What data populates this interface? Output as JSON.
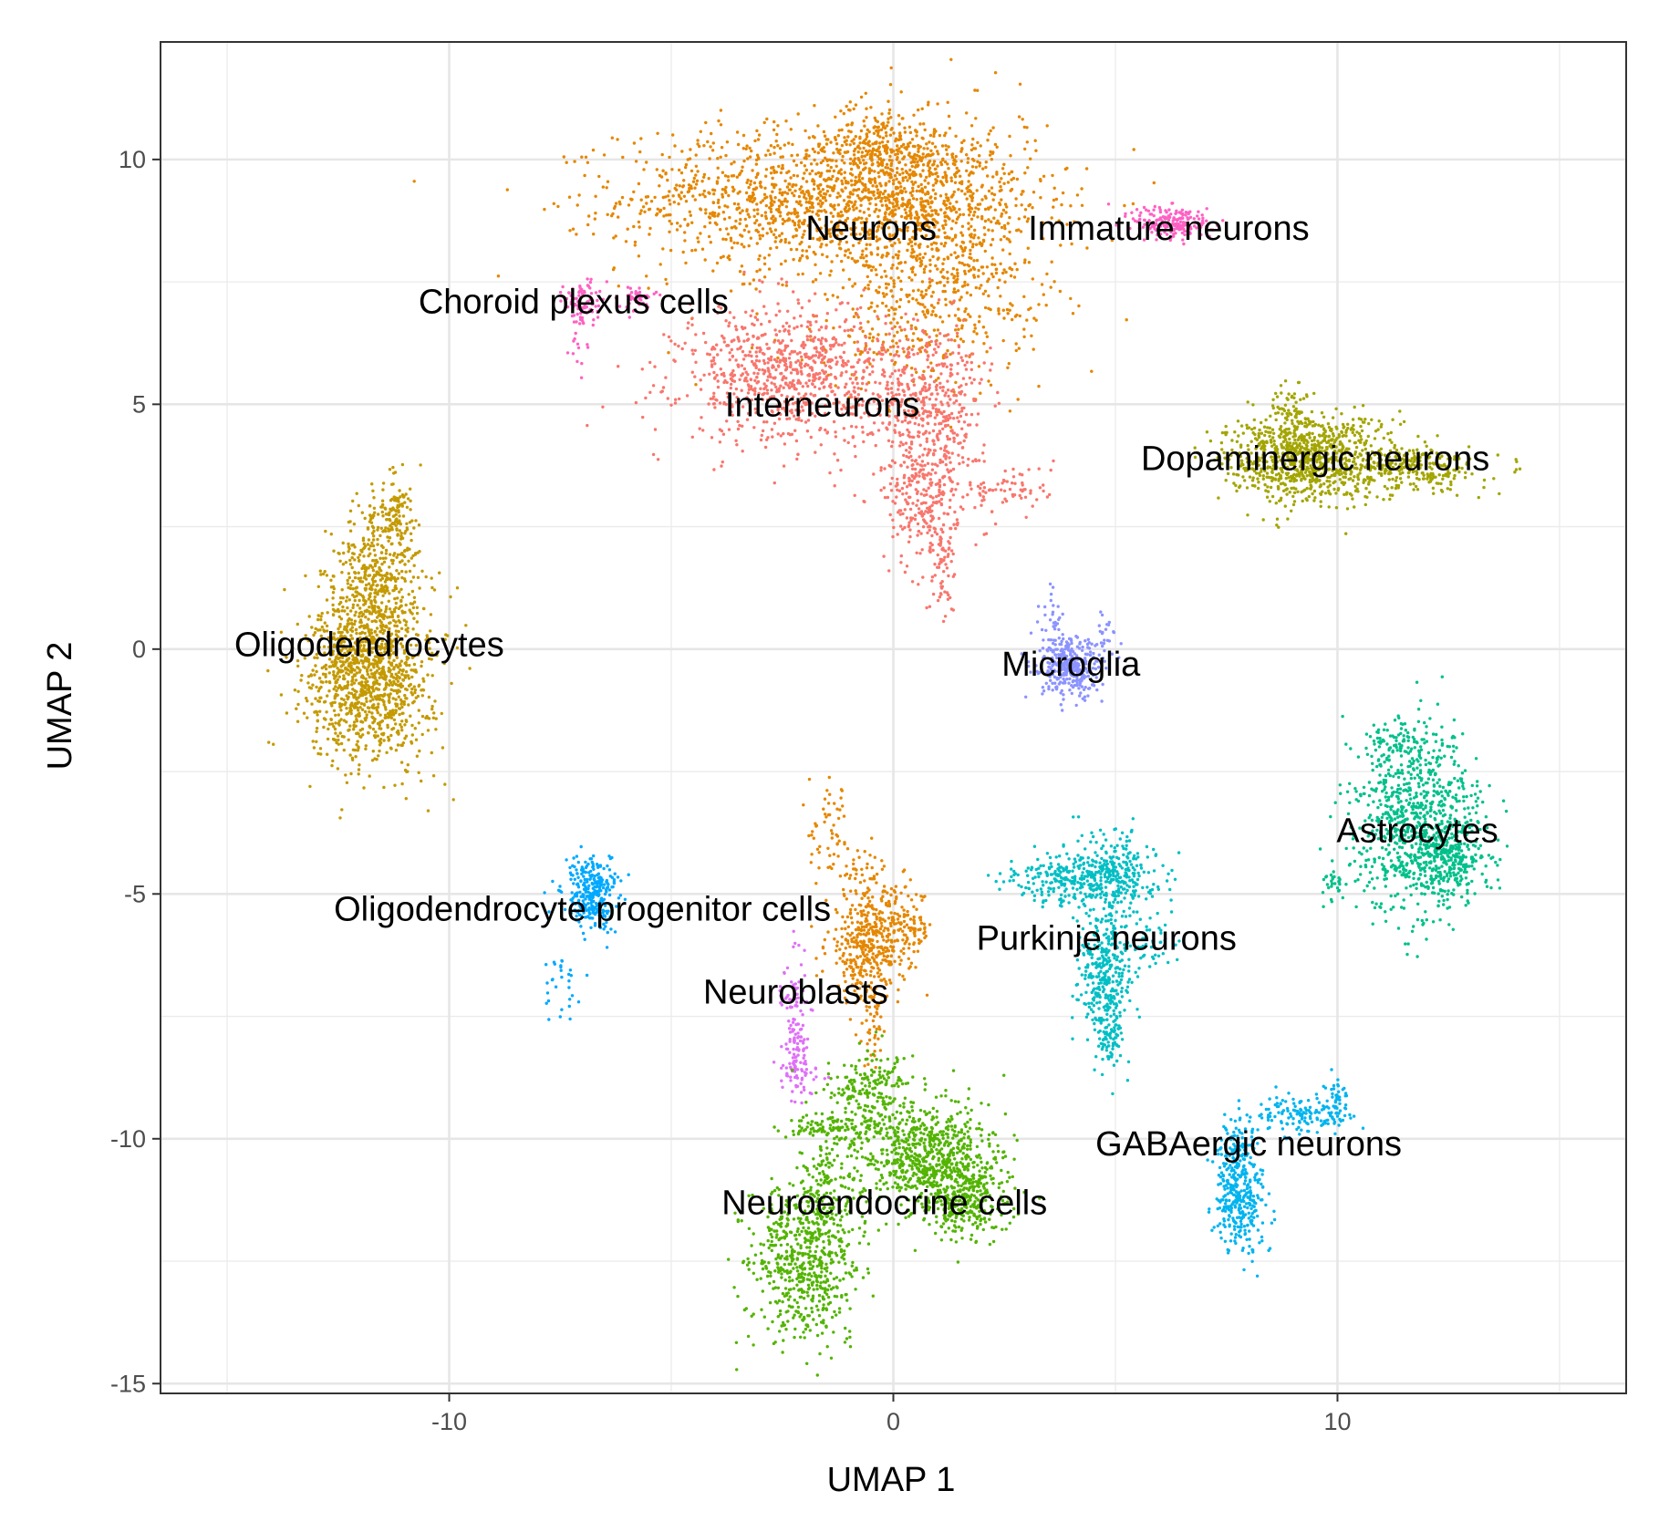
{
  "chart_data": {
    "type": "scatter",
    "title": "",
    "xlabel": "UMAP 1",
    "ylabel": "UMAP 2",
    "xlim": [
      -16.5,
      16.5
    ],
    "ylim": [
      -15.2,
      12.4
    ],
    "x_ticks": [
      -10,
      0,
      10
    ],
    "x_tick_labels": [
      "-10",
      "0",
      "10"
    ],
    "y_ticks": [
      -15,
      -10,
      -5,
      0,
      5,
      10
    ],
    "y_tick_labels": [
      "-15",
      "-10",
      "-5",
      "0",
      "5",
      "10"
    ],
    "x_minor_ticks": [
      -15,
      -5,
      5,
      15
    ],
    "y_minor_ticks": [
      -12.5,
      -7.5,
      -2.5,
      2.5,
      7.5
    ],
    "grid": true,
    "legend": "none",
    "clusters": [
      {
        "name": "Neurons",
        "color": "#E58700",
        "label_x": -0.5,
        "label_y": 8.6,
        "blobs": [
          {
            "cx": -1.5,
            "cy": 9.2,
            "sx": 2.3,
            "sy": 0.75,
            "n": 1500
          },
          {
            "cx": 1.2,
            "cy": 8.3,
            "sx": 1.1,
            "sy": 1.3,
            "n": 600
          },
          {
            "cx": -0.4,
            "cy": 10.4,
            "sx": 0.5,
            "sy": 0.4,
            "n": 120
          },
          {
            "cx": 0.3,
            "cy": 10.0,
            "sx": 0.7,
            "sy": 0.4,
            "n": 140
          },
          {
            "cx": 0.4,
            "cy": 6.6,
            "sx": 1.6,
            "sy": 0.7,
            "n": 180
          },
          {
            "cx": -0.6,
            "cy": -6.1,
            "sx": 0.45,
            "sy": 0.55,
            "n": 350
          },
          {
            "cx": 0.1,
            "cy": -5.7,
            "sx": 0.4,
            "sy": 0.4,
            "n": 160
          },
          {
            "cx": -1.4,
            "cy": -3.7,
            "sx": 0.25,
            "sy": 0.45,
            "n": 50
          },
          {
            "cx": -0.8,
            "cy": -4.5,
            "sx": 0.35,
            "sy": 0.25,
            "n": 45
          },
          {
            "cx": -0.5,
            "cy": -7.8,
            "sx": 0.15,
            "sy": 0.5,
            "n": 40
          }
        ]
      },
      {
        "name": "Interneurons",
        "color": "#F8766D",
        "label_x": -1.6,
        "label_y": 5.0,
        "blobs": [
          {
            "cx": -2.2,
            "cy": 5.6,
            "sx": 1.3,
            "sy": 0.7,
            "n": 900
          },
          {
            "cx": 0.9,
            "cy": 4.8,
            "sx": 0.6,
            "sy": 0.9,
            "n": 450
          },
          {
            "cx": 0.6,
            "cy": 3.0,
            "sx": 0.4,
            "sy": 0.6,
            "n": 200
          },
          {
            "cx": 1.1,
            "cy": 1.6,
            "sx": 0.15,
            "sy": 0.6,
            "n": 70
          },
          {
            "cx": 2.6,
            "cy": 3.3,
            "sx": 0.5,
            "sy": 0.25,
            "n": 70
          }
        ]
      },
      {
        "name": "Immature neurons",
        "color": "#FF61C3",
        "label_x": 6.2,
        "label_y": 8.6,
        "blobs": [
          {
            "cx": 6.3,
            "cy": 8.7,
            "sx": 0.45,
            "sy": 0.18,
            "n": 200
          }
        ]
      },
      {
        "name": "Choroid plexus cells",
        "color": "#FF61C3",
        "label_x": -7.2,
        "label_y": 7.1,
        "blobs": [
          {
            "cx": -7.0,
            "cy": 7.1,
            "sx": 0.2,
            "sy": 0.22,
            "n": 80
          },
          {
            "cx": -5.8,
            "cy": 7.2,
            "sx": 0.2,
            "sy": 0.12,
            "n": 40
          },
          {
            "cx": -7.1,
            "cy": 6.4,
            "sx": 0.12,
            "sy": 0.3,
            "n": 20
          }
        ]
      },
      {
        "name": "Dopaminergic neurons",
        "color": "#A3A500",
        "label_x": 9.5,
        "label_y": 3.9,
        "blobs": [
          {
            "cx": 9.3,
            "cy": 3.9,
            "sx": 0.9,
            "sy": 0.45,
            "n": 900
          },
          {
            "cx": 11.8,
            "cy": 3.7,
            "sx": 0.7,
            "sy": 0.25,
            "n": 250
          },
          {
            "cx": 8.9,
            "cy": 4.9,
            "sx": 0.2,
            "sy": 0.3,
            "n": 60
          }
        ]
      },
      {
        "name": "Oligodendrocytes",
        "color": "#C49A00",
        "label_x": -11.8,
        "label_y": 0.1,
        "blobs": [
          {
            "cx": -11.8,
            "cy": -0.5,
            "sx": 0.7,
            "sy": 0.9,
            "n": 1200
          },
          {
            "cx": -11.6,
            "cy": 1.5,
            "sx": 0.45,
            "sy": 0.8,
            "n": 400
          },
          {
            "cx": -11.2,
            "cy": 2.9,
            "sx": 0.2,
            "sy": 0.35,
            "n": 80
          }
        ]
      },
      {
        "name": "Microglia",
        "color": "#8B93FF",
        "label_x": 4.0,
        "label_y": -0.3,
        "blobs": [
          {
            "cx": 4.0,
            "cy": -0.4,
            "sx": 0.35,
            "sy": 0.3,
            "n": 350
          },
          {
            "cx": 3.6,
            "cy": 0.5,
            "sx": 0.15,
            "sy": 0.3,
            "n": 30
          },
          {
            "cx": 4.8,
            "cy": 0.3,
            "sx": 0.12,
            "sy": 0.25,
            "n": 20
          }
        ]
      },
      {
        "name": "Astrocytes",
        "color": "#00C08B",
        "label_x": 11.8,
        "label_y": -3.7,
        "blobs": [
          {
            "cx": 11.8,
            "cy": -3.5,
            "sx": 0.7,
            "sy": 0.9,
            "n": 800
          },
          {
            "cx": 12.5,
            "cy": -4.3,
            "sx": 0.45,
            "sy": 0.4,
            "n": 250
          },
          {
            "cx": 11.4,
            "cy": -2.0,
            "sx": 0.3,
            "sy": 0.3,
            "n": 80
          },
          {
            "cx": 10.0,
            "cy": -4.8,
            "sx": 0.2,
            "sy": 0.2,
            "n": 30
          }
        ]
      },
      {
        "name": "Purkinje neurons",
        "color": "#00BFC4",
        "label_x": 4.8,
        "label_y": -5.9,
        "blobs": [
          {
            "cx": 4.9,
            "cy": -4.6,
            "sx": 0.55,
            "sy": 0.4,
            "n": 350
          },
          {
            "cx": 3.6,
            "cy": -4.7,
            "sx": 0.55,
            "sy": 0.25,
            "n": 150
          },
          {
            "cx": 4.8,
            "cy": -6.7,
            "sx": 0.3,
            "sy": 0.7,
            "n": 350
          },
          {
            "cx": 4.9,
            "cy": -7.9,
            "sx": 0.15,
            "sy": 0.3,
            "n": 60
          },
          {
            "cx": 5.8,
            "cy": -6.0,
            "sx": 0.25,
            "sy": 0.25,
            "n": 40
          }
        ]
      },
      {
        "name": "Oligodendrocyte progenitor cells",
        "color": "#00A9FF",
        "label_x": -7.0,
        "label_y": -5.3,
        "blobs": [
          {
            "cx": -6.8,
            "cy": -5.0,
            "sx": 0.3,
            "sy": 0.35,
            "n": 300
          },
          {
            "cx": -7.5,
            "cy": -6.8,
            "sx": 0.2,
            "sy": 0.35,
            "n": 30
          }
        ]
      },
      {
        "name": "Neuroblasts",
        "color": "#DF70F8",
        "label_x": -2.2,
        "label_y": -7.0,
        "blobs": [
          {
            "cx": -2.2,
            "cy": -7.8,
            "sx": 0.15,
            "sy": 0.8,
            "n": 120
          },
          {
            "cx": -2.1,
            "cy": -8.6,
            "sx": 0.25,
            "sy": 0.2,
            "n": 50
          }
        ]
      },
      {
        "name": "Neuroendocrine cells",
        "color": "#53B400",
        "label_x": -0.2,
        "label_y": -11.3,
        "blobs": [
          {
            "cx": -2.0,
            "cy": -12.5,
            "sx": 0.6,
            "sy": 0.8,
            "n": 600
          },
          {
            "cx": 0.8,
            "cy": -10.4,
            "sx": 0.8,
            "sy": 0.55,
            "n": 700
          },
          {
            "cx": 1.6,
            "cy": -11.3,
            "sx": 0.5,
            "sy": 0.4,
            "n": 300
          },
          {
            "cx": -0.5,
            "cy": -9.0,
            "sx": 0.5,
            "sy": 0.4,
            "n": 200
          },
          {
            "cx": -1.2,
            "cy": -9.8,
            "sx": 0.6,
            "sy": 0.15,
            "n": 120
          },
          {
            "cx": -1.6,
            "cy": -11.0,
            "sx": 0.4,
            "sy": 0.6,
            "n": 150
          }
        ]
      },
      {
        "name": "GABAergic neurons",
        "color": "#00B4EF",
        "label_x": 8.0,
        "label_y": -10.1,
        "blobs": [
          {
            "cx": 7.8,
            "cy": -11.3,
            "sx": 0.3,
            "sy": 0.5,
            "n": 300
          },
          {
            "cx": 7.8,
            "cy": -10.3,
            "sx": 0.2,
            "sy": 0.4,
            "n": 100
          },
          {
            "cx": 9.2,
            "cy": -9.5,
            "sx": 0.5,
            "sy": 0.2,
            "n": 130
          },
          {
            "cx": 10.0,
            "cy": -9.2,
            "sx": 0.15,
            "sy": 0.25,
            "n": 50
          }
        ]
      }
    ]
  }
}
